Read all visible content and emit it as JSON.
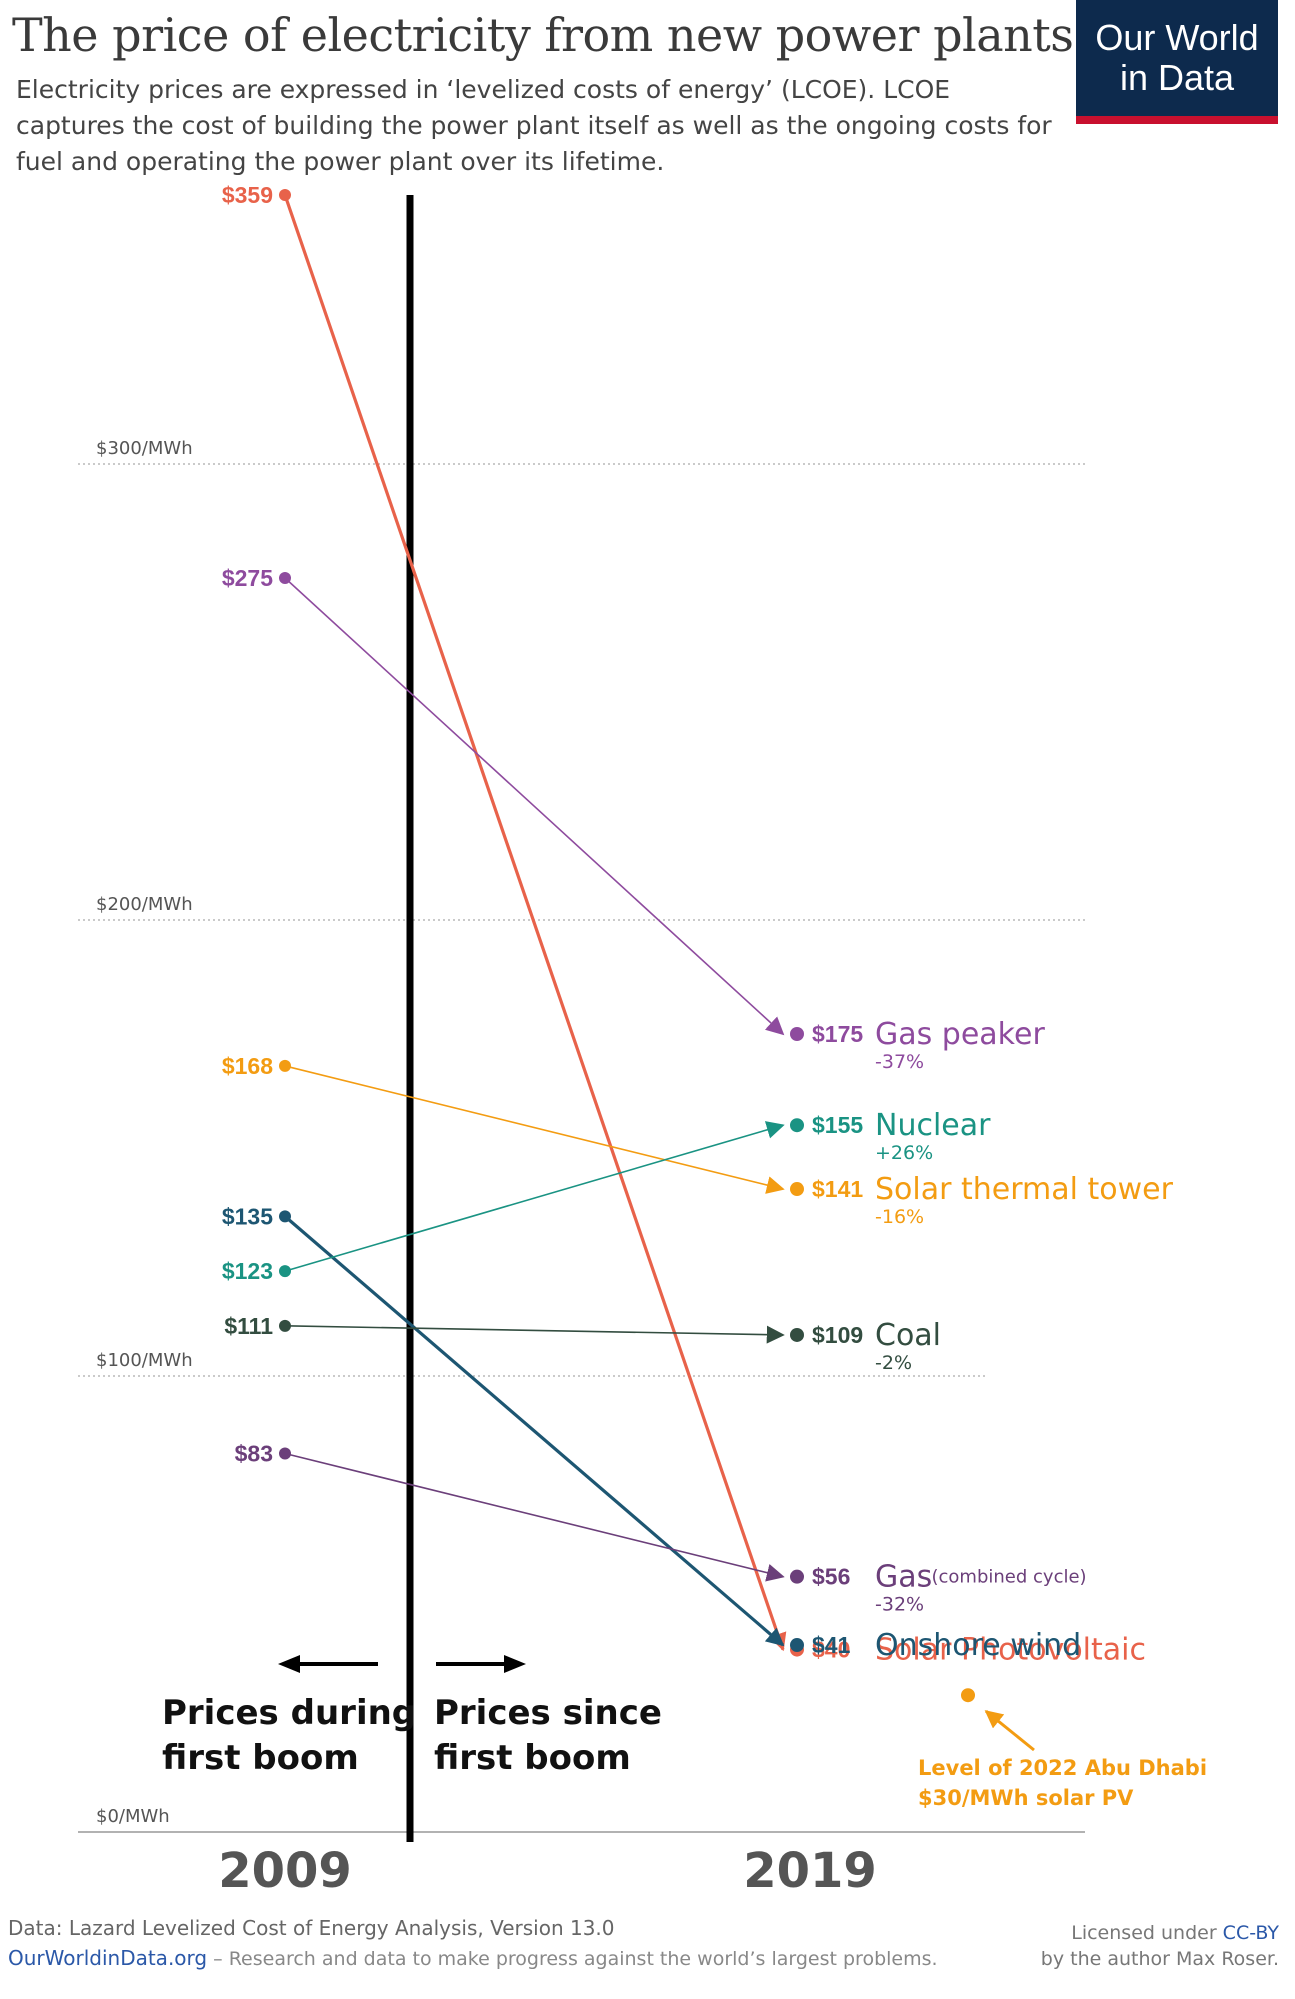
{
  "title": "The price of electricity from new power plants",
  "subtitle": "Electricity prices are expressed in ‘levelized costs of energy’ (LCOE). LCOE captures the cost of building the power plant itself as well as the ongoing costs for fuel and operating the power plant over its lifetime.",
  "logo": {
    "line1": "Our World",
    "line2": "in Data"
  },
  "colors": {
    "solar_pv": "#e8624a",
    "gas_peaker": "#8e4b9e",
    "solar_thermal": "#f39c12",
    "nuclear": "#1a9383",
    "onshore_wind": "#1d5672",
    "coal": "#334d40",
    "gas_combined": "#6b3f7a"
  },
  "chart_data": {
    "type": "line",
    "x": [
      2009,
      2019
    ],
    "x_labels": [
      "2009",
      "2019"
    ],
    "ylim": [
      0,
      360
    ],
    "yticks": [
      {
        "value": 0,
        "label": "$0/MWh"
      },
      {
        "value": 100,
        "label": "$100/MWh"
      },
      {
        "value": 200,
        "label": "$200/MWh"
      },
      {
        "value": 300,
        "label": "$300/MWh"
      }
    ],
    "series": [
      {
        "key": "solar_pv",
        "name": "Solar Photovoltaic",
        "label_start": "$359",
        "label_end": "$40",
        "values": [
          359,
          40
        ],
        "change": ""
      },
      {
        "key": "gas_peaker",
        "name": "Gas peaker",
        "label_start": "$275",
        "label_end": "$175",
        "values": [
          275,
          175
        ],
        "change": "-37%"
      },
      {
        "key": "solar_thermal",
        "name": "Solar thermal tower",
        "label_start": "$168",
        "label_end": "$141",
        "values": [
          168,
          141
        ],
        "change": "-16%"
      },
      {
        "key": "onshore_wind",
        "name": "Onshore wind",
        "label_start": "$135",
        "label_end": "$41",
        "values": [
          135,
          41
        ],
        "change": ""
      },
      {
        "key": "nuclear",
        "name": "Nuclear",
        "label_start": "$123",
        "label_end": "$155",
        "values": [
          123,
          155
        ],
        "change": "+26%"
      },
      {
        "key": "coal",
        "name": "Coal",
        "label_start": "$111",
        "label_end": "$109",
        "values": [
          111,
          109
        ],
        "change": "-2%"
      },
      {
        "key": "gas_combined",
        "name": "Gas",
        "note": "(combined cycle)",
        "label_start": "$83",
        "label_end": "$56",
        "values": [
          83,
          56
        ],
        "change": "-32%"
      }
    ],
    "annotations": {
      "left_arrow_text_1": "Prices during",
      "left_arrow_text_2": "first boom",
      "right_arrow_text_1": "Prices since",
      "right_arrow_text_2": "first boom",
      "abu_dhabi": {
        "value": 30,
        "text_1": "Level of 2022 Abu Dhabi",
        "text_2": "$30/MWh solar PV"
      }
    }
  },
  "footer": {
    "source": "Data: Lazard Levelized Cost of Energy Analysis, Version 13.0",
    "site": "OurWorldinData.org",
    "tagline": " – Research and data to make progress against the world’s largest problems.",
    "license_prefix": "Licensed under ",
    "license_name": "CC-BY",
    "license_line2": "by the author Max Roser."
  }
}
